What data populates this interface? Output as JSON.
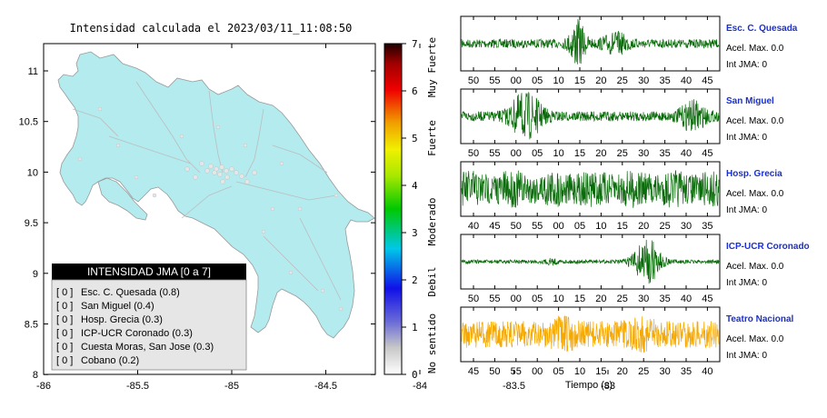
{
  "map": {
    "title": "Intensidad calculada el 2023/03/11_11:08:50",
    "lon_ticks": [
      "-86",
      "-85.5",
      "-85",
      "-84.5",
      "-84",
      "-83.5",
      "-83"
    ],
    "lat_ticks": [
      "11",
      "10.5",
      "10",
      "9.5",
      "9",
      "8.5",
      "8"
    ],
    "land_color": "#b3ebee",
    "colorbar": {
      "ticks": [
        "7",
        "6",
        "5",
        "4",
        "3",
        "2",
        "1",
        "0"
      ],
      "labels": [
        "Muy Fuerte",
        "Fuerte",
        "Moderado",
        "Debil",
        "No sentido"
      ]
    },
    "legend": {
      "title": "INTENSIDAD JMA [0 a 7]",
      "rows": [
        {
          "value": "[ 0 ]",
          "name": "Esc. C. Quesada (0.8)"
        },
        {
          "value": "[ 0 ]",
          "name": "San Miguel (0.4)"
        },
        {
          "value": "[ 0 ]",
          "name": "Hosp. Grecia (0.3)"
        },
        {
          "value": "[ 0 ]",
          "name": "ICP-UCR Coronado (0.3)"
        },
        {
          "value": "[ 0 ]",
          "name": "Cuesta Moras, San Jose (0.3)"
        },
        {
          "value": "[ 0 ]",
          "name": "Cobano (0.2)"
        }
      ]
    }
  },
  "seismograms": {
    "xlabel": "Tiempo (s)",
    "stations": [
      {
        "name": "Esc. C. Quesada",
        "accel": "Acel. Max. 0.0",
        "jma": "Int JMA: 0",
        "color": "#0a6b0a",
        "ticks": [
          "50",
          "55",
          "00",
          "05",
          "10",
          "15",
          "20",
          "25",
          "30",
          "35",
          "40",
          "45"
        ]
      },
      {
        "name": "San Miguel",
        "accel": "Acel. Max. 0.0",
        "jma": "Int JMA: 0",
        "color": "#0a6b0a",
        "ticks": [
          "50",
          "55",
          "00",
          "05",
          "10",
          "15",
          "20",
          "25",
          "30",
          "35",
          "40",
          "45"
        ]
      },
      {
        "name": "Hosp. Grecia",
        "accel": "Acel. Max. 0.0",
        "jma": "Int JMA: 0",
        "color": "#0a6b0a",
        "ticks": [
          "40",
          "45",
          "50",
          "55",
          "00",
          "05",
          "10",
          "15",
          "20",
          "25",
          "30",
          "35"
        ]
      },
      {
        "name": "ICP-UCR Coronado",
        "accel": "Acel. Max. 0.0",
        "jma": "Int JMA: 0",
        "color": "#0a6b0a",
        "ticks": [
          "50",
          "55",
          "00",
          "05",
          "10",
          "15",
          "20",
          "25",
          "30",
          "35",
          "40",
          "45"
        ]
      },
      {
        "name": "Teatro Nacional",
        "accel": "Acel. Max. 0.0",
        "jma": "Int JMA: 0",
        "color": "#f5a800",
        "ticks": [
          "45",
          "50",
          "55",
          "00",
          "05",
          "10",
          "15",
          "20",
          "25",
          "30",
          "35",
          "40"
        ]
      }
    ]
  }
}
